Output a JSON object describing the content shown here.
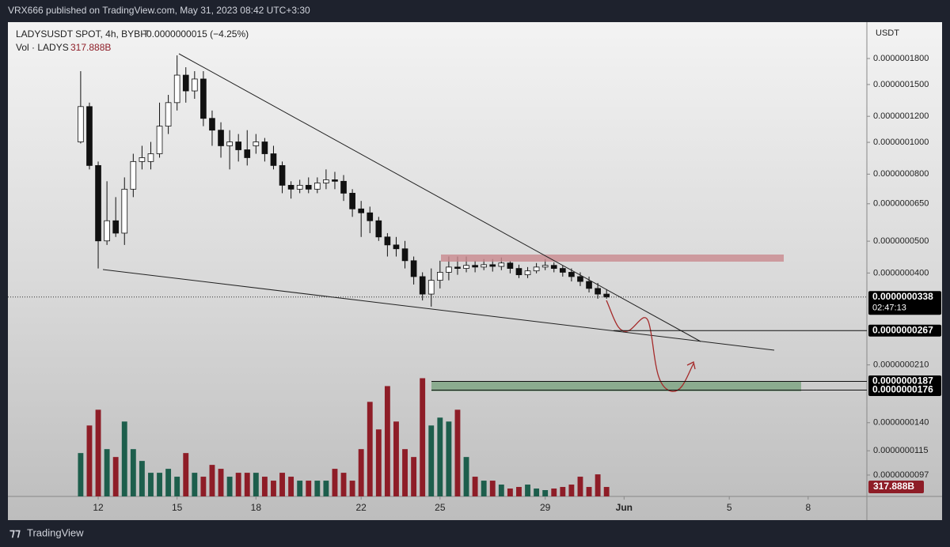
{
  "header": {
    "publisher": "VRX666 published on TradingView.com, May 31, 2023 08:42 UTC+3:30"
  },
  "chart": {
    "type": "candlestick",
    "symbol": "LADYSUSDT SPOT, 4h, BYBIT",
    "change": "−0.0000000015 (−4.25%)",
    "volume_title": "Vol · LADYS",
    "axis_unit": "USDT",
    "log_scale": true,
    "ylim": [
      8.35e-09,
      2.323e-07
    ],
    "yticks": [
      {
        "value": 1.8e-07,
        "label": "0.0000001800"
      },
      {
        "value": 1.5e-07,
        "label": "0.0000001500"
      },
      {
        "value": 1.2e-07,
        "label": "0.0000001200"
      },
      {
        "value": 1e-07,
        "label": "0.0000001000"
      },
      {
        "value": 8e-08,
        "label": "0.0000000800"
      },
      {
        "value": 6.5e-08,
        "label": "0.0000000650"
      },
      {
        "value": 5e-08,
        "label": "0.0000000500"
      },
      {
        "value": 4e-08,
        "label": "0.0000000400"
      },
      {
        "value": 2.1e-08,
        "label": "0.0000000210"
      },
      {
        "value": 1.4e-08,
        "label": "0.0000000140"
      },
      {
        "value": 1.15e-08,
        "label": "0.0000000115"
      },
      {
        "value": 9.7e-09,
        "label": "0.0000000097"
      }
    ],
    "xlim": [
      -8.3,
      89.7
    ],
    "xticks": [
      {
        "value": 2,
        "label": "12"
      },
      {
        "value": 11,
        "label": "15"
      },
      {
        "value": 20,
        "label": "18"
      },
      {
        "value": 32,
        "label": "22"
      },
      {
        "value": 41,
        "label": "25"
      },
      {
        "value": 53,
        "label": "29"
      },
      {
        "value": 62,
        "label": "Jun"
      },
      {
        "value": 74,
        "label": "5"
      },
      {
        "value": 83,
        "label": "8"
      }
    ],
    "up_color": "#ffffff",
    "down_color": "#111111",
    "candles": [
      [
        1.003e-07,
        1.647e-07,
        9.92e-08,
        1.285e-07
      ],
      [
        1.285e-07,
        1.321e-07,
        8.27e-08,
        8.5e-08
      ],
      [
        8.5e-08,
        8.74e-08,
        4.13e-08,
        5.01e-08
      ],
      [
        5.01e-08,
        7.61e-08,
        4.87e-08,
        5.77e-08
      ],
      [
        5.77e-08,
        6.81e-08,
        5.15e-08,
        5.29e-08
      ],
      [
        5.29e-08,
        7.82e-08,
        4.87e-08,
        7.2e-08
      ],
      [
        7.2e-08,
        9.23e-08,
        6.81e-08,
        8.74e-08
      ],
      [
        8.74e-08,
        9.76e-08,
        8.27e-08,
        8.98e-08
      ],
      [
        8.74e-08,
        1.003e-07,
        8.27e-08,
        9.23e-08
      ],
      [
        9.23e-08,
        1.321e-07,
        8.98e-08,
        1.12e-07
      ],
      [
        1.12e-07,
        1.395e-07,
        1.06e-07,
        1.321e-07
      ],
      [
        1.321e-07,
        1.84e-07,
        1.25e-07,
        1.602e-07
      ],
      [
        1.602e-07,
        1.693e-07,
        1.321e-07,
        1.434e-07
      ],
      [
        1.434e-07,
        1.647e-07,
        1.357e-07,
        1.559e-07
      ],
      [
        1.559e-07,
        1.647e-07,
        1.12e-07,
        1.183e-07
      ],
      [
        1.183e-07,
        1.25e-07,
        9.76e-08,
        1.089e-07
      ],
      [
        1.089e-07,
        1.151e-07,
        8.98e-08,
        9.76e-08
      ],
      [
        9.76e-08,
        1.089e-07,
        8.27e-08,
        1.003e-07
      ],
      [
        1.003e-07,
        1.06e-07,
        8.74e-08,
        9.49e-08
      ],
      [
        9.49e-08,
        1.089e-07,
        8.5e-08,
        8.98e-08
      ],
      [
        9.76e-08,
        1.06e-07,
        9.23e-08,
        1.003e-07
      ],
      [
        1.003e-07,
        1.031e-07,
        8.74e-08,
        9.23e-08
      ],
      [
        9.23e-08,
        9.76e-08,
        8.27e-08,
        8.5e-08
      ],
      [
        8.5e-08,
        8.74e-08,
        7e-08,
        7.4e-08
      ],
      [
        7.4e-08,
        7.61e-08,
        6.74e-08,
        7.2e-08
      ],
      [
        7.2e-08,
        7.69e-08,
        7e-08,
        7.4e-08
      ],
      [
        7.4e-08,
        7.82e-08,
        7e-08,
        7.2e-08
      ],
      [
        7.2e-08,
        7.82e-08,
        7e-08,
        7.52e-08
      ],
      [
        7.52e-08,
        8.27e-08,
        7.2e-08,
        7.69e-08
      ],
      [
        7.69e-08,
        8.13e-08,
        7.2e-08,
        7.61e-08
      ],
      [
        7.61e-08,
        7.95e-08,
        6.63e-08,
        7e-08
      ],
      [
        7e-08,
        7.2e-08,
        5.93e-08,
        6.27e-08
      ],
      [
        6.27e-08,
        6.63e-08,
        5.15e-08,
        6.1e-08
      ],
      [
        6.1e-08,
        6.37e-08,
        5.29e-08,
        5.77e-08
      ],
      [
        5.77e-08,
        5.93e-08,
        5.01e-08,
        5.15e-08
      ],
      [
        5.15e-08,
        5.29e-08,
        4.49e-08,
        4.87e-08
      ],
      [
        4.87e-08,
        5.15e-08,
        4.49e-08,
        4.74e-08
      ],
      [
        4.74e-08,
        5.01e-08,
        4.13e-08,
        4.36e-08
      ],
      [
        4.36e-08,
        4.49e-08,
        3.69e-08,
        3.9e-08
      ],
      [
        3.9e-08,
        4.02e-08,
        3.3e-08,
        3.45e-08
      ],
      [
        3.45e-08,
        4.13e-08,
        3.16e-08,
        3.8e-08
      ],
      [
        3.8e-08,
        4.36e-08,
        3.59e-08,
        4.02e-08
      ],
      [
        4.02e-08,
        4.49e-08,
        3.8e-08,
        4.17e-08
      ],
      [
        4.17e-08,
        4.49e-08,
        3.95e-08,
        4.13e-08
      ],
      [
        4.13e-08,
        4.49e-08,
        4.02e-08,
        4.22e-08
      ],
      [
        4.22e-08,
        4.36e-08,
        4.02e-08,
        4.17e-08
      ],
      [
        4.17e-08,
        4.41e-08,
        4.08e-08,
        4.24e-08
      ],
      [
        4.24e-08,
        4.41e-08,
        4.04e-08,
        4.19e-08
      ],
      [
        4.19e-08,
        4.46e-08,
        4.08e-08,
        4.29e-08
      ],
      [
        4.29e-08,
        4.36e-08,
        3.99e-08,
        4.13e-08
      ],
      [
        4.13e-08,
        4.24e-08,
        3.86e-08,
        3.95e-08
      ],
      [
        3.95e-08,
        4.17e-08,
        3.86e-08,
        4.06e-08
      ],
      [
        4.06e-08,
        4.29e-08,
        3.99e-08,
        4.17e-08
      ],
      [
        4.17e-08,
        4.41e-08,
        4.08e-08,
        4.22e-08
      ],
      [
        4.22e-08,
        4.31e-08,
        4.02e-08,
        4.13e-08
      ],
      [
        4.13e-08,
        4.22e-08,
        3.9e-08,
        4.02e-08
      ],
      [
        4.02e-08,
        4.13e-08,
        3.77e-08,
        3.9e-08
      ],
      [
        3.9e-08,
        4.02e-08,
        3.65e-08,
        3.77e-08
      ],
      [
        3.77e-08,
        3.9e-08,
        3.49e-08,
        3.59e-08
      ],
      [
        3.59e-08,
        3.73e-08,
        3.34e-08,
        3.45e-08
      ],
      [
        3.45e-08,
        3.57e-08,
        3.34e-08,
        3.38e-08
      ]
    ],
    "volume": {
      "up_color": "#1d5e4c",
      "down_color": "#8e1d27",
      "ylim": [
        0,
        4200000000000.0
      ],
      "values": [
        1458000000000.0,
        2385000000000.0,
        2915000000000.0,
        1590000000000.0,
        1325000000000.0,
        2518000000000.0,
        1590000000000.0,
        1193000000000.0,
        795000000000.0,
        795000000000.0,
        928000000000.0,
        663000000000.0,
        1458000000000.0,
        795000000000.0,
        663000000000.0,
        1060000000000.0,
        928000000000.0,
        663000000000.0,
        795000000000.0,
        795000000000.0,
        795000000000.0,
        663000000000.0,
        530000000000.0,
        795000000000.0,
        663000000000.0,
        530000000000.0,
        530000000000.0,
        530000000000.0,
        530000000000.0,
        928000000000.0,
        795000000000.0,
        530000000000.0,
        1590000000000.0,
        3180000000000.0,
        2253000000000.0,
        3710000000000.0,
        2518000000000.0,
        1590000000000.0,
        1325000000000.0,
        3975000000000.0,
        2385000000000.0,
        2650000000000.0,
        2518000000000.0,
        2915000000000.0,
        1325000000000.0,
        663000000000.0,
        530000000000.0,
        530000000000.0,
        398000000000.0,
        265000000000.0,
        318000000000.0,
        398000000000.0,
        265000000000.0,
        212000000000.0,
        265000000000.0,
        318000000000.0,
        398000000000.0,
        663000000000.0,
        318000000000.0,
        742000000000.0,
        317888000000.0
      ],
      "value_labels": [
        null,
        null,
        null,
        null,
        null,
        null,
        null,
        null,
        null,
        null,
        null,
        null,
        null,
        null,
        null,
        null,
        null,
        null,
        null,
        null,
        null,
        null,
        null,
        null,
        null,
        null,
        null,
        null,
        null,
        null,
        null,
        null,
        null,
        null,
        null,
        null,
        null,
        null,
        null,
        null,
        null,
        null,
        null,
        null,
        null,
        null,
        null,
        null,
        null,
        null,
        null,
        null,
        null,
        null,
        null,
        null,
        null,
        null,
        null,
        null,
        "317.888B"
      ]
    },
    "price_markers": [
      {
        "value": 3.38e-08,
        "label": "0.0000000338",
        "countdown": "02:47:13",
        "style": "dark"
      },
      {
        "value": 2.67e-08,
        "label": "0.0000000267",
        "style": "light"
      },
      {
        "value": 1.87e-08,
        "label": "0.0000000187",
        "style": "light"
      },
      {
        "value": 1.76e-08,
        "label": "0.0000000176",
        "style": "light"
      }
    ]
  },
  "footer": {
    "brand": "TradingView"
  }
}
